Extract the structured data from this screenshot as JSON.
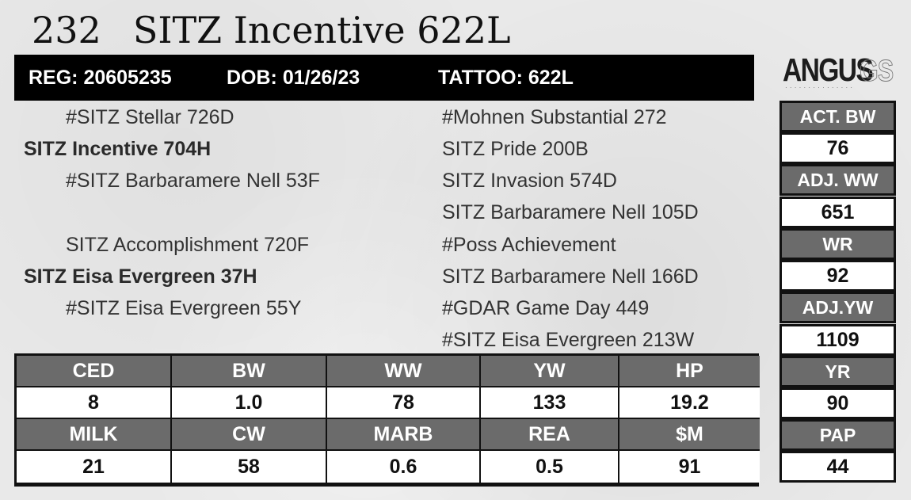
{
  "title": {
    "lot_number": "232",
    "name": "SITZ Incentive 622L"
  },
  "header": {
    "reg": "REG: 20605235",
    "dob": "DOB: 01/26/23",
    "tattoo": "TATTOO: 622L"
  },
  "logo": {
    "main": "ANGUS",
    "sub": "GS"
  },
  "pedigree": {
    "left": [
      "#SITZ Stellar 726D",
      "SITZ Incentive 704H",
      "#SITZ Barbaramere Nell 53F",
      "SITZ Accomplishment 720F",
      "SITZ Eisa Evergreen 37H",
      "#SITZ Eisa Evergreen 55Y"
    ],
    "right": [
      "#Mohnen Substantial 272",
      "SITZ Pride 200B",
      "SITZ Invasion 574D",
      "SITZ Barbaramere Nell 105D",
      "#Poss Achievement",
      "SITZ Barbaramere Nell 166D",
      "#GDAR Game Day 449",
      "#SITZ Eisa Evergreen 213W"
    ]
  },
  "epds": {
    "row1_labels": [
      "CED",
      "BW",
      "WW",
      "YW",
      "HP"
    ],
    "row1_values": [
      "8",
      "1.0",
      "78",
      "133",
      "19.2"
    ],
    "row2_labels": [
      "MILK",
      "CW",
      "MARB",
      "REA",
      "$M"
    ],
    "row2_values": [
      "21",
      "58",
      "0.6",
      "0.5",
      "91"
    ]
  },
  "side": [
    {
      "label": "ACT. BW",
      "value": "76"
    },
    {
      "label": "ADJ. WW",
      "value": "651"
    },
    {
      "label": "WR",
      "value": "92"
    },
    {
      "label": "ADJ.YW",
      "value": "1109"
    },
    {
      "label": "YR",
      "value": "90"
    },
    {
      "label": "PAP",
      "value": "44"
    }
  ]
}
